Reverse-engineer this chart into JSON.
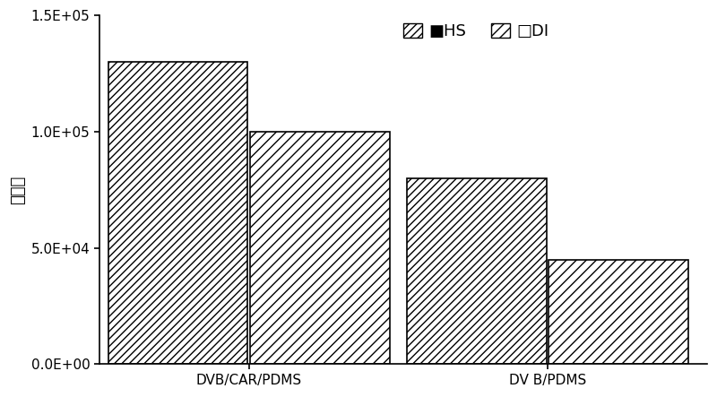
{
  "categories": [
    "DVB/CAR/PDMS",
    "DV B/PDMS"
  ],
  "series": [
    {
      "label": "HS",
      "values": [
        130000,
        80000
      ],
      "hatch": "////",
      "facecolor": "#ffffff",
      "edgecolor": "#000000"
    },
    {
      "label": "DI",
      "values": [
        100000,
        45000
      ],
      "hatch": "///",
      "facecolor": "#ffffff",
      "edgecolor": "#000000"
    }
  ],
  "ylim": [
    0,
    150000
  ],
  "yticks": [
    0,
    50000,
    100000,
    150000
  ],
  "ytick_labels": [
    "0.0E+00",
    "5.0E+04",
    "1.0E+05",
    "1.5E+05"
  ],
  "ylabel": "峰面积",
  "bar_width": 0.28,
  "background_color": "#ffffff",
  "tick_fontsize": 11,
  "axis_fontsize": 13,
  "legend_fontsize": 13
}
